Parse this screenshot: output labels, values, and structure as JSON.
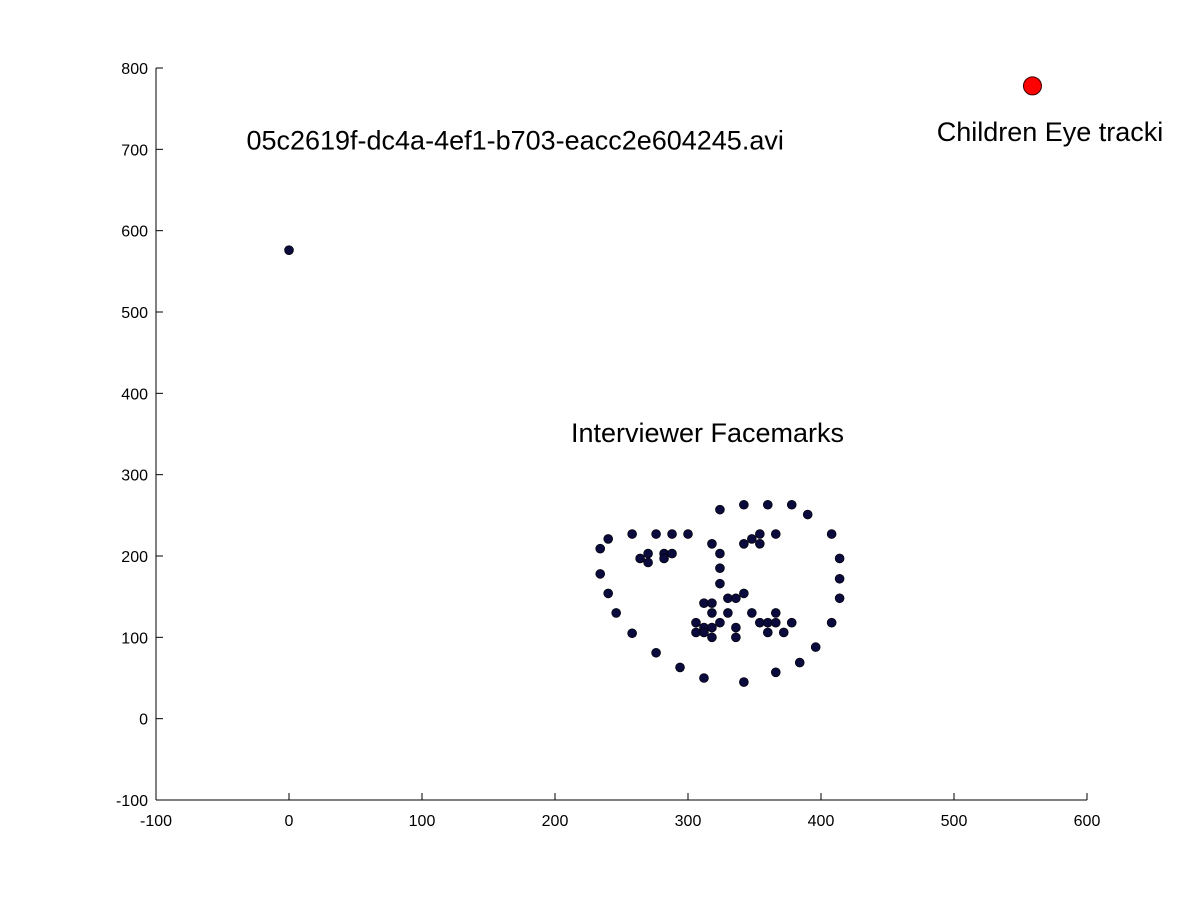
{
  "chart_data": {
    "type": "scatter",
    "title": "",
    "xlabel": "",
    "ylabel": "",
    "xlim": [
      -100,
      600
    ],
    "ylim": [
      -100,
      800
    ],
    "x_ticks": [
      -100,
      0,
      100,
      200,
      300,
      400,
      500,
      600
    ],
    "y_ticks": [
      -100,
      0,
      100,
      200,
      300,
      400,
      500,
      600,
      700,
      800
    ],
    "grid": false,
    "annotations": [
      {
        "id": "video-filename",
        "text": "05c2619f-dc4a-4ef1-b703-eacc2e604245.avi",
        "x": -32,
        "y": 700
      },
      {
        "id": "eye-tracking-label",
        "text": "Children Eye tracki",
        "x": 487,
        "y": 710
      },
      {
        "id": "facemarks-label",
        "text": "Interviewer Facemarks",
        "x": 212,
        "y": 340
      }
    ],
    "series": [
      {
        "id": "facemarks",
        "color": "#0a0a3c",
        "marker": "circle",
        "points": [
          [
            0,
            576
          ],
          [
            234,
            209
          ],
          [
            234,
            178
          ],
          [
            240,
            221
          ],
          [
            240,
            154
          ],
          [
            246,
            130
          ],
          [
            258,
            227
          ],
          [
            258,
            105
          ],
          [
            264,
            197
          ],
          [
            270,
            203
          ],
          [
            270,
            192
          ],
          [
            276,
            227
          ],
          [
            276,
            81
          ],
          [
            282,
            203
          ],
          [
            282,
            197
          ],
          [
            288,
            227
          ],
          [
            288,
            203
          ],
          [
            294,
            63
          ],
          [
            300,
            227
          ],
          [
            306,
            118
          ],
          [
            306,
            106
          ],
          [
            312,
            142
          ],
          [
            312,
            112
          ],
          [
            312,
            106
          ],
          [
            312,
            50
          ],
          [
            318,
            215
          ],
          [
            318,
            142
          ],
          [
            318,
            130
          ],
          [
            318,
            112
          ],
          [
            318,
            100
          ],
          [
            324,
            257
          ],
          [
            324,
            203
          ],
          [
            324,
            185
          ],
          [
            324,
            166
          ],
          [
            324,
            118
          ],
          [
            330,
            148
          ],
          [
            330,
            130
          ],
          [
            336,
            148
          ],
          [
            336,
            112
          ],
          [
            336,
            100
          ],
          [
            342,
            263
          ],
          [
            342,
            215
          ],
          [
            342,
            154
          ],
          [
            342,
            45
          ],
          [
            348,
            221
          ],
          [
            348,
            130
          ],
          [
            354,
            227
          ],
          [
            354,
            215
          ],
          [
            354,
            118
          ],
          [
            360,
            263
          ],
          [
            360,
            118
          ],
          [
            360,
            106
          ],
          [
            366,
            227
          ],
          [
            366,
            130
          ],
          [
            366,
            118
          ],
          [
            366,
            57
          ],
          [
            372,
            106
          ],
          [
            378,
            263
          ],
          [
            378,
            118
          ],
          [
            384,
            69
          ],
          [
            390,
            251
          ],
          [
            396,
            88
          ],
          [
            408,
            227
          ],
          [
            408,
            118
          ],
          [
            414,
            197
          ],
          [
            414,
            172
          ],
          [
            414,
            148
          ]
        ]
      },
      {
        "id": "eye-tracking",
        "color": "#ff0000",
        "marker": "circle",
        "points": [
          [
            559,
            778
          ]
        ]
      }
    ]
  }
}
